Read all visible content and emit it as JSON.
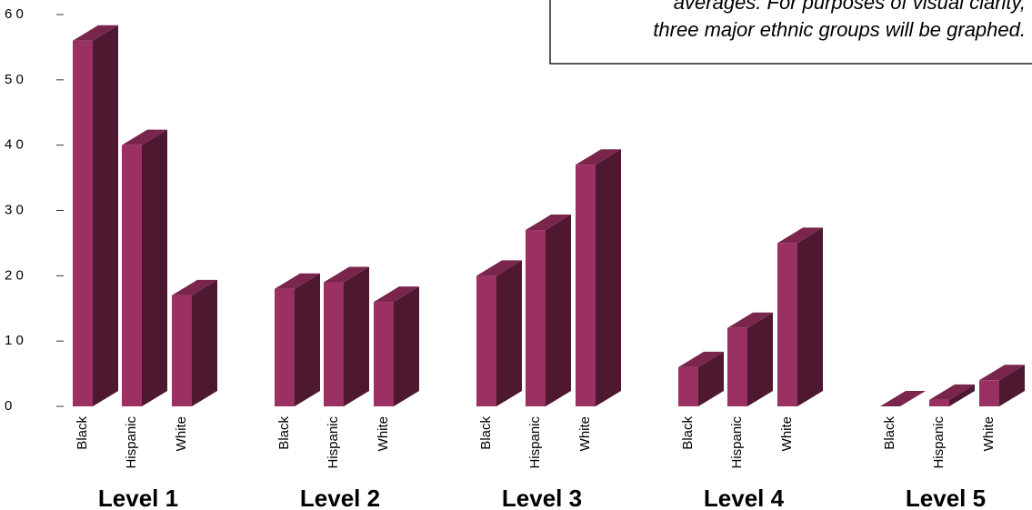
{
  "chart_data": {
    "type": "bar3d",
    "annotations": [
      "averages. For purposes of visual clarity,",
      "three major ethnic groups will be graphed."
    ],
    "categories": [
      "Level 1",
      "Level 2",
      "Level 3",
      "Level 4",
      "Level 5"
    ],
    "series": [
      {
        "name": "Black",
        "color": "#9b3062",
        "values": [
          56,
          18,
          20,
          6,
          0
        ]
      },
      {
        "name": "Hispanic",
        "color": "#9b3062",
        "values": [
          40,
          19,
          27,
          12,
          1
        ]
      },
      {
        "name": "White",
        "color": "#9b3062",
        "values": [
          17,
          16,
          37,
          25,
          4
        ]
      }
    ],
    "ylim": [
      0,
      60
    ],
    "yticks": [
      0,
      {
        "value": 10,
        "label": "1 0"
      },
      {
        "value": 20,
        "label": "2 0"
      },
      {
        "value": 30,
        "label": "3 0"
      },
      {
        "value": 40,
        "label": "4 0"
      },
      {
        "value": 50,
        "label": "5 0"
      },
      {
        "value": 60,
        "label": "6 0"
      }
    ]
  }
}
